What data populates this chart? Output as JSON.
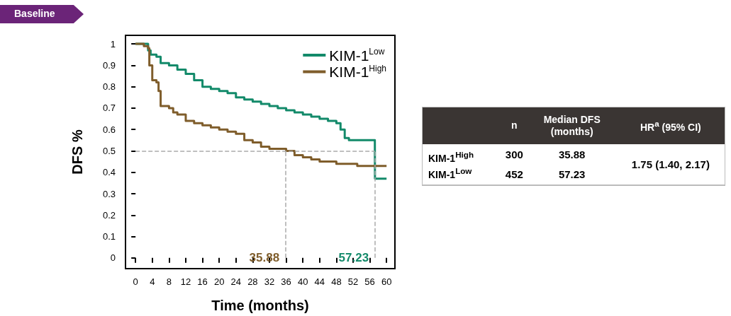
{
  "chart_data": [
    {
      "type": "step",
      "annotations": [
        "Baseline"
      ],
      "xlabel": "Time (months)",
      "ylabel": "DFS %",
      "xlim": [
        -2.4,
        62
      ],
      "xticks": [
        0,
        4,
        8,
        12,
        16,
        20,
        24,
        28,
        32,
        36,
        40,
        44,
        48,
        52,
        56,
        60
      ],
      "ylim": [
        -0.05,
        1.04
      ],
      "yticks": [
        0,
        0.1,
        0.2,
        0.3,
        0.4,
        0.5,
        0.6,
        0.7,
        0.8,
        0.9,
        1
      ],
      "legend": "top right",
      "grid": false,
      "line_style": "solid",
      "series": [
        {
          "name": "KIM-1$^{Low}$",
          "color": "#138a6a",
          "x": [
            0,
            2,
            3,
            3.6,
            5,
            6,
            8,
            10,
            12,
            14,
            16,
            18,
            20,
            22,
            24,
            26,
            28,
            30,
            32,
            34,
            36,
            38,
            40,
            42,
            44,
            46,
            48,
            49,
            50,
            51,
            57.2,
            57.23,
            60
          ],
          "values": [
            1,
            1,
            0.97,
            0.95,
            0.94,
            0.91,
            0.9,
            0.88,
            0.86,
            0.83,
            0.8,
            0.79,
            0.78,
            0.77,
            0.75,
            0.74,
            0.73,
            0.72,
            0.71,
            0.7,
            0.69,
            0.68,
            0.67,
            0.66,
            0.65,
            0.64,
            0.63,
            0.6,
            0.56,
            0.55,
            0.55,
            0.37,
            0.37
          ]
        },
        {
          "name": "KIM-1$^{High}$",
          "color": "#7f5d2b",
          "x": [
            0,
            2,
            3,
            3.3,
            4,
            5,
            5.5,
            6,
            8,
            9,
            10,
            12,
            14,
            16,
            18,
            20,
            22,
            24,
            26,
            28,
            30,
            32,
            34,
            36,
            38,
            40,
            42,
            44,
            48,
            52,
            53,
            60
          ],
          "values": [
            1,
            0.99,
            0.98,
            0.9,
            0.83,
            0.82,
            0.78,
            0.71,
            0.7,
            0.68,
            0.67,
            0.64,
            0.63,
            0.62,
            0.61,
            0.6,
            0.59,
            0.58,
            0.55,
            0.54,
            0.52,
            0.51,
            0.51,
            0.5,
            0.48,
            0.47,
            0.46,
            0.45,
            0.44,
            0.44,
            0.43,
            0.43
          ]
        }
      ],
      "ref_lines": [
        {
          "axis": "y",
          "value": 0.5,
          "color": "#aaaaaa",
          "line_style": "dashed"
        },
        {
          "axis": "x",
          "value": 35.88,
          "label": "35.88",
          "color": "#aaaaaa",
          "line_style": "dashed"
        },
        {
          "axis": "x",
          "value": 57.23,
          "label": "57.23",
          "color": "#aaaaaa",
          "line_style": "dashed"
        }
      ]
    },
    {
      "type": "other",
      "categories": [
        "n",
        "Median DFS (months)",
        "HR$^{a}$ (95% CI)"
      ],
      "y_categories": [
        "KIM-1$^{High}$",
        "KIM-1$^{Low}$"
      ],
      "cell_labels": [
        [
          "300",
          "35.88",
          "1.75 (1.40, 2.17)"
        ],
        [
          "452",
          "57.23",
          null
        ]
      ]
    }
  ]
}
